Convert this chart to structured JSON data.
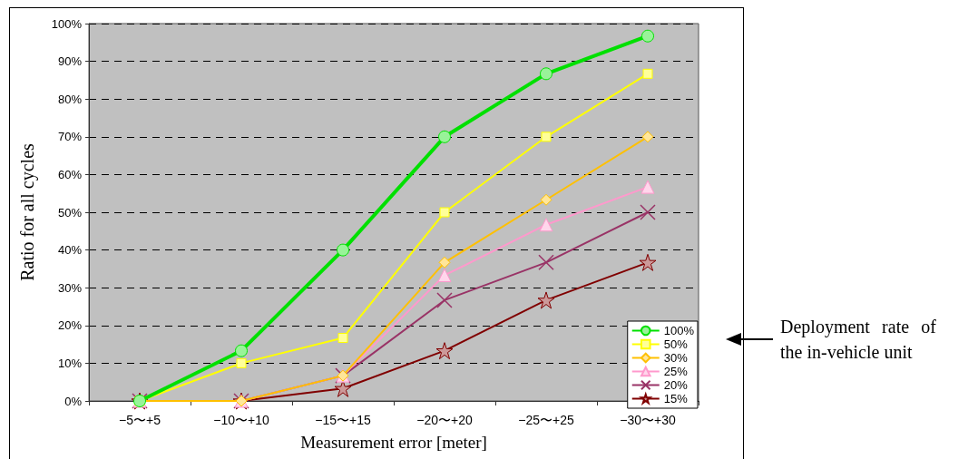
{
  "chart_data": {
    "type": "line",
    "xlabel": "Measurement error [meter]",
    "ylabel": "Ratio for all cycles",
    "categories": [
      "−5〜+5",
      "−10〜+10",
      "−15〜+15",
      "−20〜+20",
      "−25〜+25",
      "−30〜+30"
    ],
    "series": [
      {
        "name": "100%",
        "color": "#00e000",
        "marker": "circle",
        "values": [
          0,
          13.3,
          40,
          70,
          86.7,
          96.7
        ]
      },
      {
        "name": "50%",
        "color": "#ffff00",
        "marker": "square",
        "values": [
          0,
          10,
          16.7,
          50,
          70,
          86.7
        ]
      },
      {
        "name": "30%",
        "color": "#ffc000",
        "marker": "diamond",
        "values": [
          0,
          0,
          6.7,
          36.7,
          53.3,
          70
        ]
      },
      {
        "name": "25%",
        "color": "#ff99cc",
        "marker": "triangle",
        "values": [
          0,
          0,
          6.7,
          33.3,
          46.7,
          56.7
        ]
      },
      {
        "name": "20%",
        "color": "#993366",
        "marker": "cross",
        "values": [
          0,
          0,
          6.7,
          26.7,
          36.7,
          50
        ]
      },
      {
        "name": "15%",
        "color": "#800000",
        "marker": "star",
        "values": [
          0,
          0,
          3.3,
          13.3,
          26.7,
          36.7
        ]
      }
    ],
    "ylim": [
      0,
      100
    ],
    "yticks": [
      {
        "value": 0,
        "label": "0%"
      },
      {
        "value": 10,
        "label": "10%"
      },
      {
        "value": 20,
        "label": "20%"
      },
      {
        "value": 30,
        "label": "30%"
      },
      {
        "value": 40,
        "label": "40%"
      },
      {
        "value": 50,
        "label": "50%"
      },
      {
        "value": 60,
        "label": "60%"
      },
      {
        "value": 70,
        "label": "70%"
      },
      {
        "value": 80,
        "label": "80%"
      },
      {
        "value": 90,
        "label": "90%"
      },
      {
        "value": 100,
        "label": "100%"
      }
    ],
    "grid": "y",
    "legend": "bottom right",
    "line_style": "solid",
    "annotations": [
      "Deployment rate of the in-vehicle unit"
    ]
  }
}
